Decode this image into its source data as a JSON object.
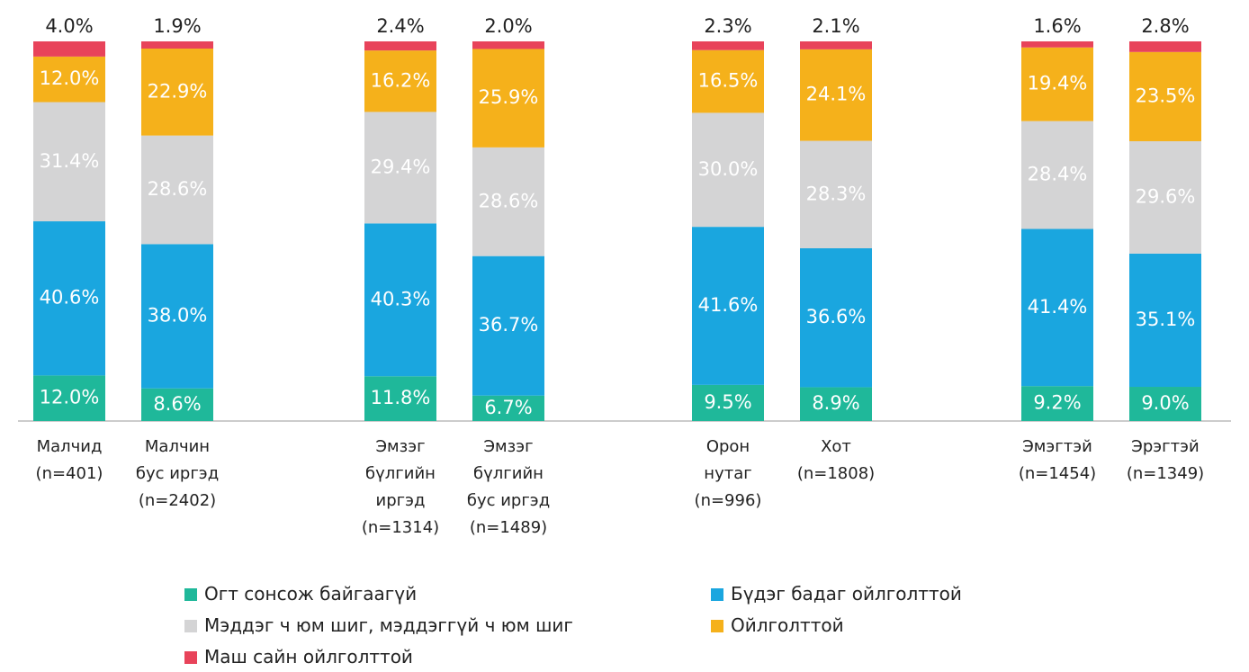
{
  "chart_data": {
    "type": "stacked_bar",
    "categories": [
      "Малчид\n(n=401)",
      "Малчин\nбус иргэд\n(n=2402)",
      "Эмзэг\nбүлгийн\nиргэд\n(n=1314)",
      "Эмзэг\nбүлгийн\nбус иргэд\n(n=1489)",
      "Орон\nнутаг\n(n=996)",
      "Хот\n(n=1808)",
      "Эмэгтэй\n(n=1454)",
      "Эрэгтэй\n(n=1349)"
    ],
    "series": [
      {
        "name": "Огт сонсож байгаагүй",
        "color": "#1fb89a",
        "values": [
          12.0,
          8.6,
          11.8,
          6.7,
          9.5,
          8.9,
          9.2,
          9.0
        ],
        "value_labels": [
          "12.0%",
          "8.6%",
          "11.8%",
          "6.7%",
          "9.5%",
          "8.9%",
          "9.2%",
          "9.0%"
        ]
      },
      {
        "name": "Бүдэг бадаг ойлголттой",
        "color": "#1aa6df",
        "values": [
          40.6,
          38.0,
          40.3,
          36.7,
          41.6,
          36.6,
          41.4,
          35.1
        ],
        "value_labels": [
          "40.6%",
          "38.0%",
          "40.3%",
          "36.7%",
          "41.6%",
          "36.6%",
          "41.4%",
          "35.1%"
        ]
      },
      {
        "name": "Мэддэг ч юм шиг, мэддэггүй ч юм шиг",
        "color": "#d4d4d5",
        "values": [
          31.4,
          28.6,
          29.4,
          28.6,
          30.0,
          28.3,
          28.4,
          29.6
        ],
        "value_labels": [
          "31.4%",
          "28.6%",
          "29.4%",
          "28.6%",
          "30.0%",
          "28.3%",
          "28.4%",
          "29.6%"
        ]
      },
      {
        "name": "Ойлголттой",
        "color": "#f5b11b",
        "values": [
          12.0,
          22.9,
          16.2,
          25.9,
          16.5,
          24.1,
          19.4,
          23.5
        ],
        "value_labels": [
          "12.0%",
          "22.9%",
          "16.2%",
          "25.9%",
          "16.5%",
          "24.1%",
          "19.4%",
          "23.5%"
        ]
      },
      {
        "name": "Маш сайн ойлголттой",
        "color": "#e8435a",
        "values": [
          4.0,
          1.9,
          2.4,
          2.0,
          2.3,
          2.1,
          1.6,
          2.8
        ],
        "value_labels": [
          "4.0%",
          "1.9%",
          "2.4%",
          "2.0%",
          "2.3%",
          "2.1%",
          "1.6%",
          "2.8%"
        ]
      }
    ]
  }
}
